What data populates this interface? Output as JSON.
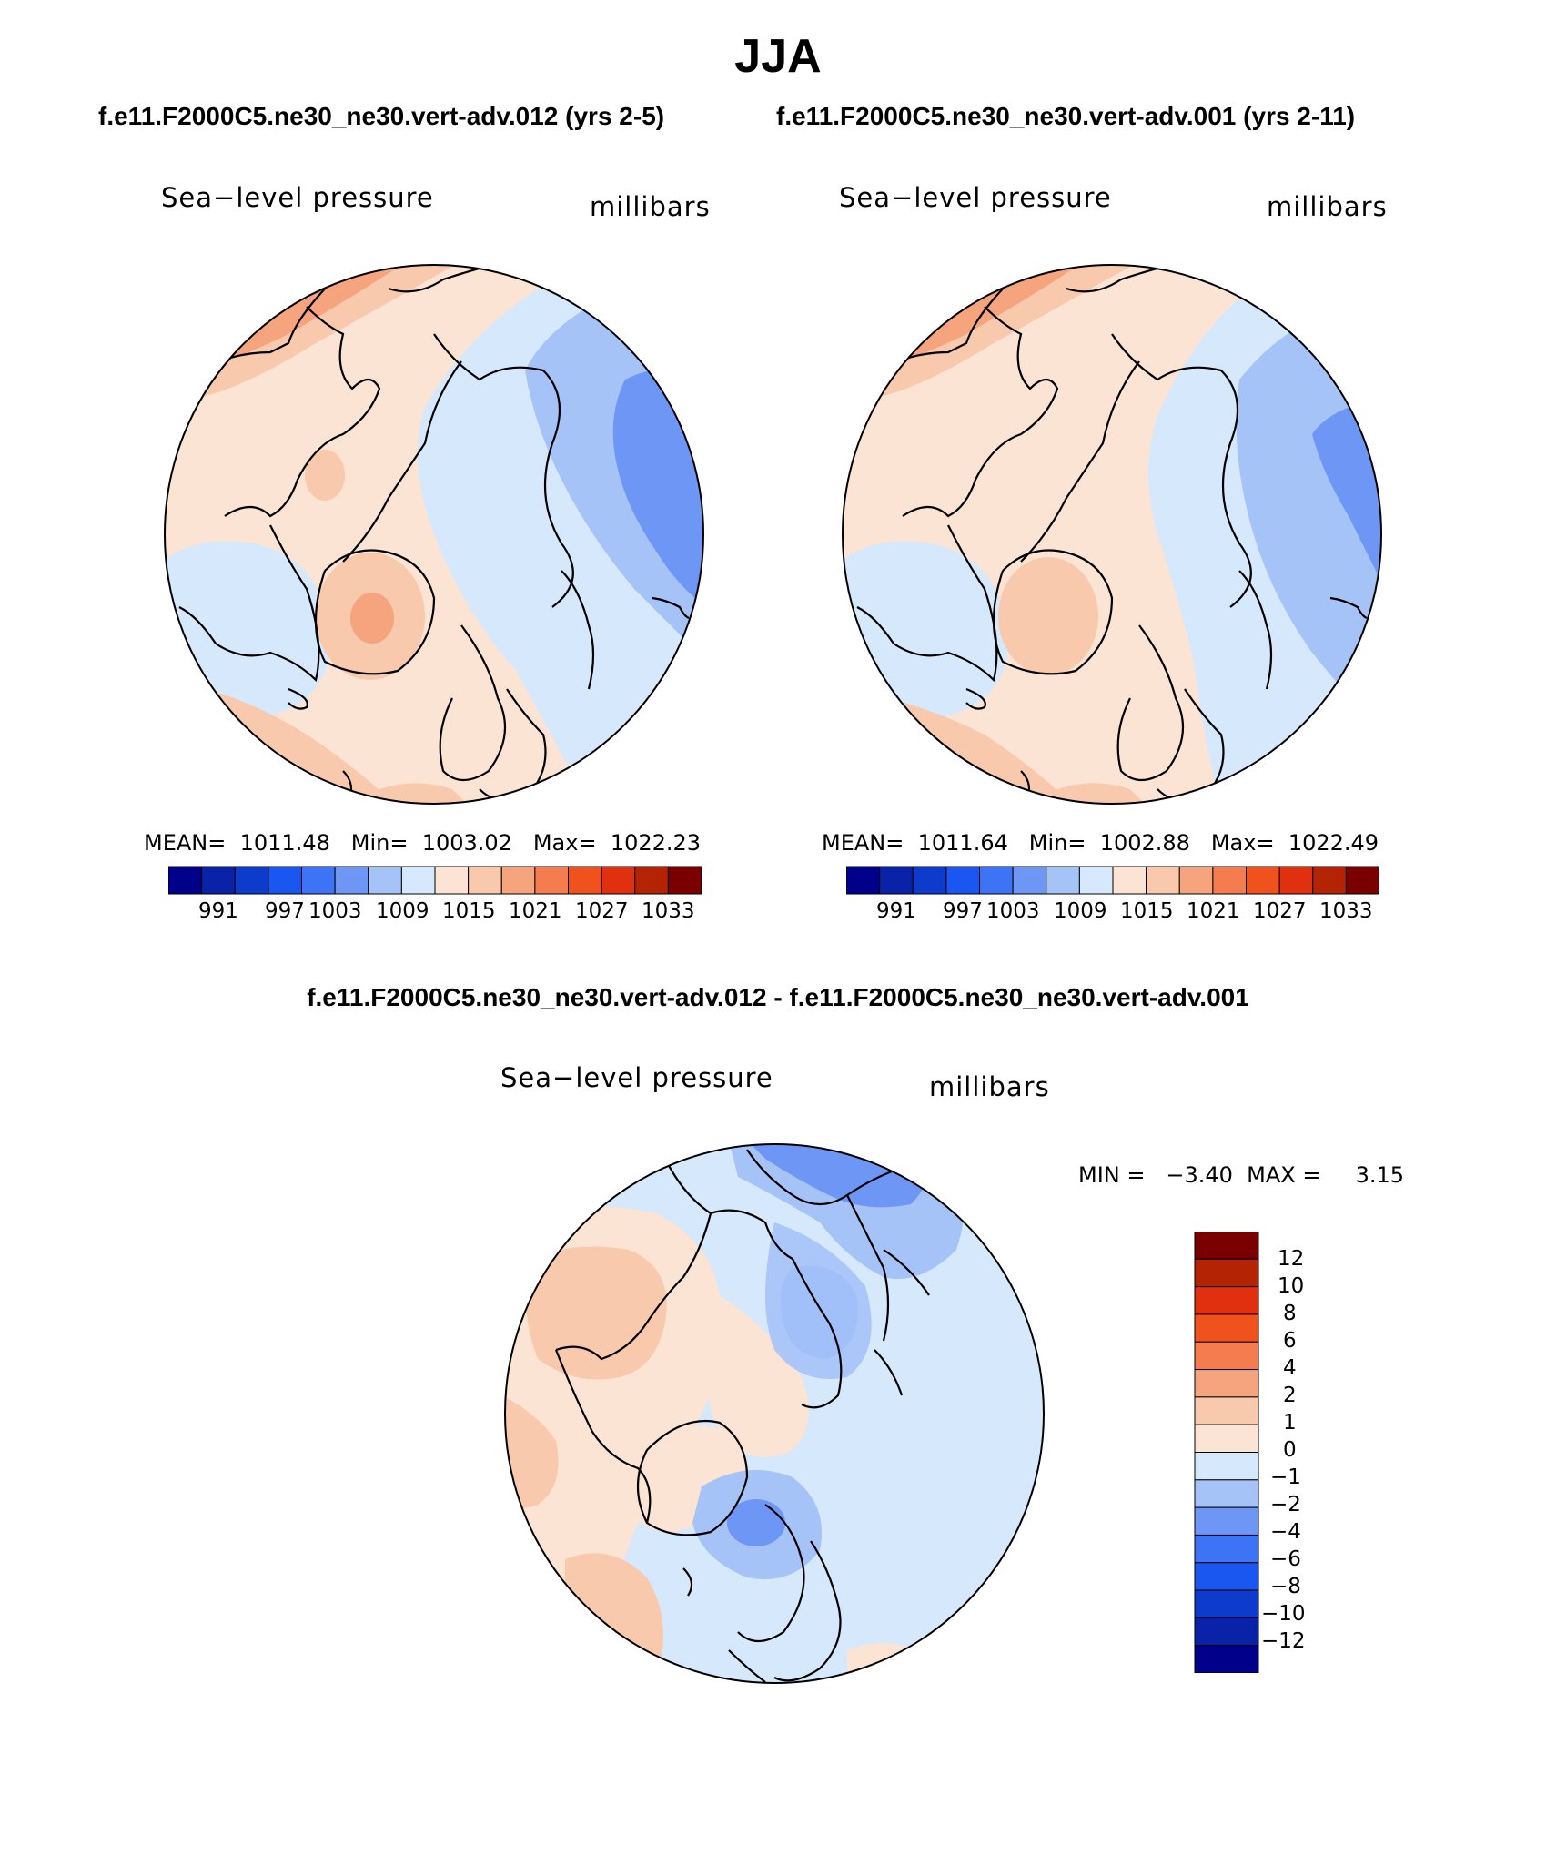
{
  "page_title": "JJA",
  "top_caption_left": "f.e11.F2000C5.ne30_ne30.vert-adv.012 (yrs 2-5)",
  "top_caption_right": "f.e11.F2000C5.ne30_ne30.vert-adv.001 (yrs 2-11)",
  "diff_caption": "f.e11.F2000C5.ne30_ne30.vert-adv.012 - f.e11.F2000C5.ne30_ne30.vert-adv.001",
  "palette": {
    "abs": [
      "#00008b",
      "#0a22a8",
      "#0d3ccc",
      "#1a56f0",
      "#3d73f5",
      "#6e97f5",
      "#a6c3f8",
      "#d6e8fb",
      "#fbe4d3",
      "#f8c9ad",
      "#f5a47d",
      "#f47c4f",
      "#f0521d",
      "#e03010",
      "#b52305",
      "#7a0000"
    ],
    "diff": [
      "#00008b",
      "#0a22a8",
      "#0d3ccc",
      "#1a56f0",
      "#3d73f5",
      "#6e97f5",
      "#a6c3f8",
      "#d6e8fb",
      "#fbe4d3",
      "#f8c9ad",
      "#f5a47d",
      "#f47c4f",
      "#f0521d",
      "#e03010",
      "#b52305",
      "#7a0000"
    ]
  },
  "panels": [
    {
      "field": "Sea−level pressure",
      "units": "millibars",
      "stats": "MEAN=  1011.48   Min=  1003.02   Max=  1022.23",
      "colorbar_labels": [
        "991",
        "997",
        "1003",
        "1009",
        "1015",
        "1021",
        "1027",
        "1033"
      ]
    },
    {
      "field": "Sea−level pressure",
      "units": "millibars",
      "stats": "MEAN=  1011.64   Min=  1002.88   Max=  1022.49",
      "colorbar_labels": [
        "991",
        "997",
        "1003",
        "1009",
        "1015",
        "1021",
        "1027",
        "1033"
      ]
    }
  ],
  "diff_panel": {
    "field": "Sea−level pressure",
    "units": "millibars",
    "minmax": "MIN =   −3.40  MAX =     3.15",
    "colorbar_labels": [
      "12",
      "10",
      "8",
      "6",
      "4",
      "2",
      "1",
      "0",
      "−1",
      "−2",
      "−4",
      "−6",
      "−8",
      "−10",
      "−12"
    ]
  }
}
